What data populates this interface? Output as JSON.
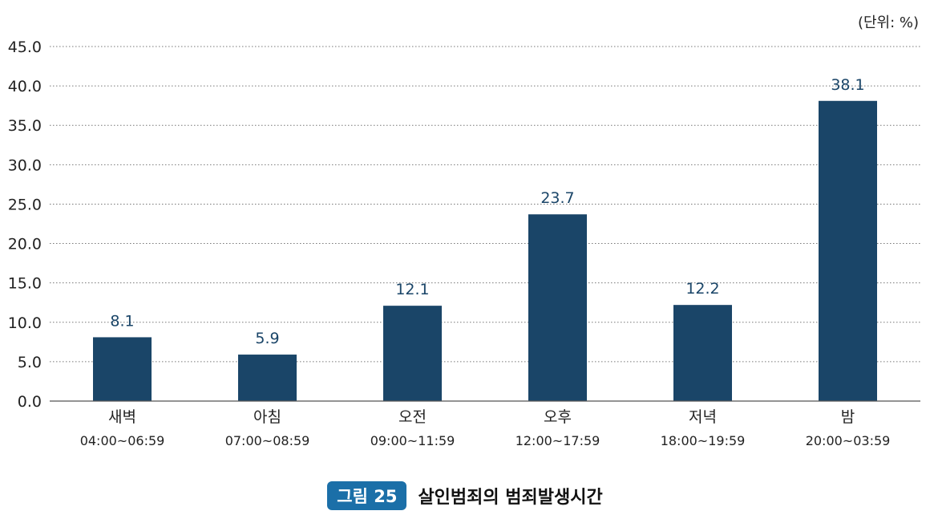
{
  "unit_label": "(단위: %)",
  "figure": {
    "badge": "그림 25",
    "title": "살인범죄의 범죄발생시간"
  },
  "colors": {
    "bar": "#1a4568",
    "value_label": "#1a4568",
    "grid": "#777777",
    "axis": "#555555",
    "badge": "#1b6fa8"
  },
  "chart_data": {
    "type": "bar",
    "title": "",
    "xlabel": "",
    "ylabel": "",
    "ylim": [
      0,
      45
    ],
    "yticks": [
      "0.0",
      "5.0",
      "10.0",
      "15.0",
      "20.0",
      "25.0",
      "30.0",
      "35.0",
      "40.0",
      "45.0"
    ],
    "grid": true,
    "categories": [
      {
        "name": "새벽",
        "range": "04:00~06:59"
      },
      {
        "name": "아침",
        "range": "07:00~08:59"
      },
      {
        "name": "오전",
        "range": "09:00~11:59"
      },
      {
        "name": "오후",
        "range": "12:00~17:59"
      },
      {
        "name": "저녁",
        "range": "18:00~19:59"
      },
      {
        "name": "밤",
        "range": "20:00~03:59"
      }
    ],
    "values": [
      8.1,
      5.9,
      12.1,
      23.7,
      12.2,
      38.1
    ]
  }
}
